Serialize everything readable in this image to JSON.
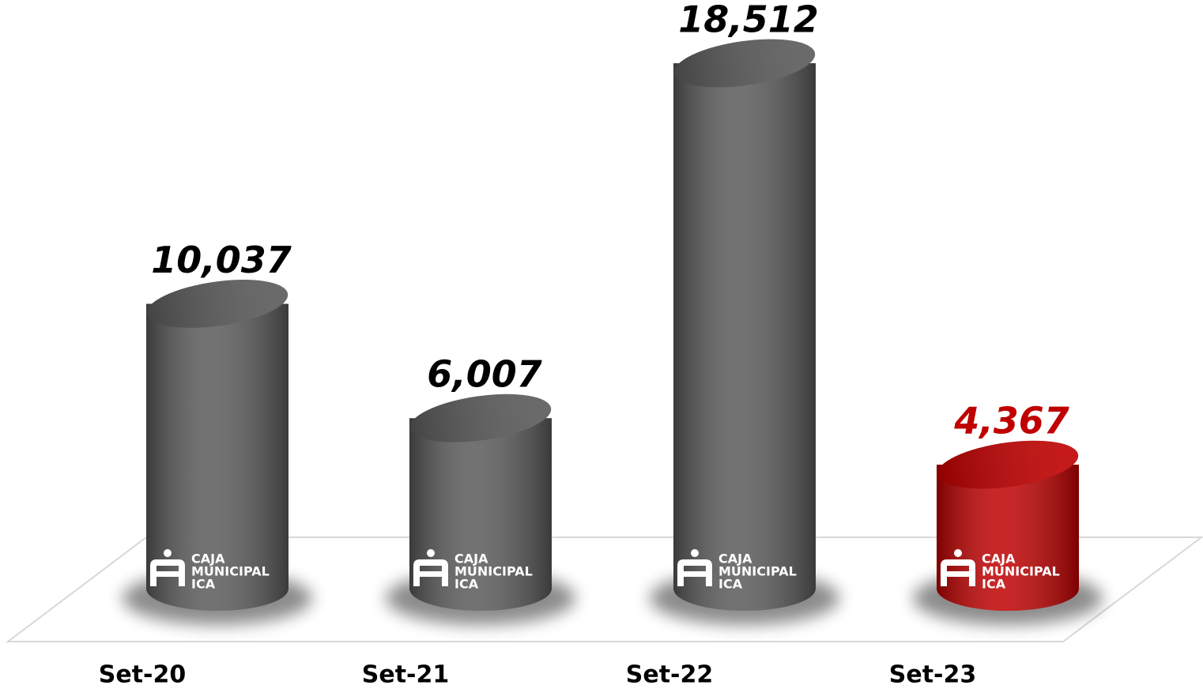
{
  "chart_data": {
    "type": "cylinder-bar",
    "categories": [
      "Set-20",
      "Set-21",
      "Set-22",
      "Set-23"
    ],
    "values": [
      10037,
      6007,
      18512,
      4367
    ],
    "value_labels": [
      "10,037",
      "6,007",
      "18,512",
      "4,367"
    ],
    "colors": [
      "#5a5a5a",
      "#5a5a5a",
      "#5a5a5a",
      "#c00000"
    ],
    "label_colors": [
      "#000000",
      "#000000",
      "#000000",
      "#c00000"
    ],
    "bar_logo": [
      "CAJA",
      "MUNICIPAL",
      "ICA"
    ]
  }
}
